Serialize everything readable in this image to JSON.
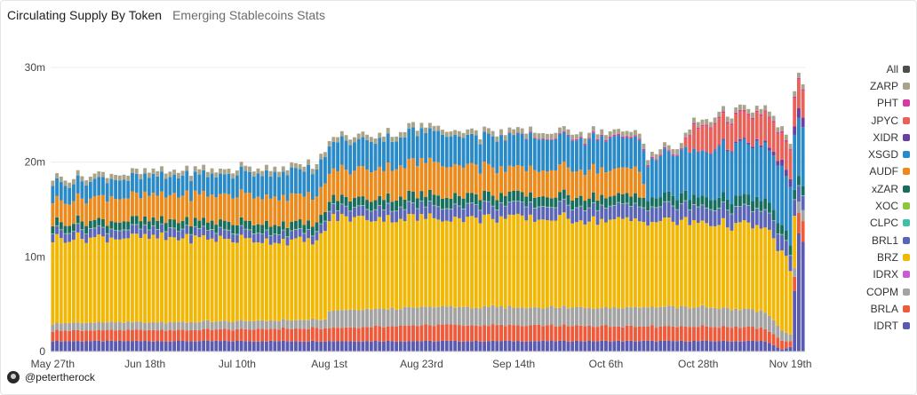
{
  "header": {
    "title": "Circulating Supply By Token",
    "subtitle": "Emerging Stablecoins Stats"
  },
  "footer": {
    "author": "@petertherock"
  },
  "chart_data": {
    "type": "bar",
    "stacked": true,
    "ylim": [
      0,
      33000000
    ],
    "y_ticks": [
      {
        "value": 0,
        "label": "0"
      },
      {
        "value": 10000000,
        "label": "10m"
      },
      {
        "value": 20000000,
        "label": "20m"
      },
      {
        "value": 30000000,
        "label": "30m"
      }
    ],
    "x_ticks": [
      {
        "index": 0,
        "label": "May 27th"
      },
      {
        "index": 22,
        "label": "Jun 18th"
      },
      {
        "index": 44,
        "label": "Jul 10th"
      },
      {
        "index": 66,
        "label": "Aug 1st"
      },
      {
        "index": 88,
        "label": "Aug 23rd"
      },
      {
        "index": 110,
        "label": "Sep 14th"
      },
      {
        "index": 132,
        "label": "Oct 6th"
      },
      {
        "index": 154,
        "label": "Oct 28th"
      },
      {
        "index": 176,
        "label": "Nov 19th"
      }
    ],
    "num_bars": 180,
    "grid": true,
    "legend_position": "right",
    "legend": [
      "All",
      "ZARP",
      "PHT",
      "JPYC",
      "XIDR",
      "XSGD",
      "AUDF",
      "xZAR",
      "XOC",
      "CLPC",
      "BRL1",
      "BRZ",
      "IDRX",
      "COPM",
      "BRLA",
      "IDRT"
    ],
    "colors": {
      "All": "#4d4d4d",
      "ZARP": "#a9a38a",
      "PHT": "#d63aa2",
      "JPYC": "#e9625a",
      "XIDR": "#6b3fa0",
      "XSGD": "#2a8ac7",
      "AUDF": "#ec8a1c",
      "xZAR": "#176e5e",
      "XOC": "#8cc63f",
      "CLPC": "#3cc0a8",
      "BRL1": "#5b65b8",
      "BRZ": "#f2b705",
      "IDRX": "#c85ad6",
      "COPM": "#a3a3a3",
      "BRLA": "#ee5a3a",
      "IDRT": "#5a5ab0"
    },
    "segments": [
      {
        "name": "IDRT",
        "anchors": [
          [
            0,
            1.1
          ],
          [
            60,
            1.1
          ],
          [
            120,
            1.1
          ],
          [
            170,
            1.1
          ],
          [
            174,
            0.2
          ],
          [
            176,
            0.5
          ],
          [
            177,
            6.5
          ],
          [
            178,
            11.8
          ],
          [
            179,
            11.8
          ]
        ]
      },
      {
        "name": "BRLA",
        "anchors": [
          [
            0,
            1.1
          ],
          [
            40,
            1.2
          ],
          [
            66,
            1.4
          ],
          [
            90,
            1.7
          ],
          [
            130,
            1.6
          ],
          [
            165,
            1.5
          ],
          [
            172,
            1.2
          ],
          [
            176,
            0.6
          ],
          [
            178,
            2.2
          ],
          [
            179,
            2.2
          ]
        ]
      },
      {
        "name": "COPM",
        "anchors": [
          [
            0,
            0.8
          ],
          [
            65,
            0.9
          ],
          [
            66,
            1.8
          ],
          [
            90,
            1.9
          ],
          [
            120,
            1.9
          ],
          [
            150,
            2.1
          ],
          [
            170,
            1.8
          ],
          [
            176,
            0.7
          ],
          [
            178,
            1.2
          ],
          [
            179,
            1.2
          ]
        ]
      },
      {
        "name": "IDRX",
        "anchors": [
          [
            0,
            0
          ],
          [
            179,
            0
          ]
        ]
      },
      {
        "name": "BRZ",
        "anchors": [
          [
            0,
            9.0
          ],
          [
            30,
            8.9
          ],
          [
            60,
            8.3
          ],
          [
            63,
            8.3
          ],
          [
            66,
            9.8
          ],
          [
            90,
            9.4
          ],
          [
            110,
            9.4
          ],
          [
            130,
            9.3
          ],
          [
            150,
            9.0
          ],
          [
            170,
            8.8
          ],
          [
            175,
            8.0
          ],
          [
            177,
            5.2
          ],
          [
            178,
            0.0
          ],
          [
            179,
            0.0
          ]
        ]
      },
      {
        "name": "BRL1",
        "anchors": [
          [
            0,
            0.9
          ],
          [
            60,
            0.9
          ],
          [
            90,
            1.3
          ],
          [
            120,
            1.4
          ],
          [
            150,
            1.6
          ],
          [
            170,
            1.8
          ],
          [
            178,
            1.6
          ],
          [
            179,
            1.6
          ]
        ]
      },
      {
        "name": "CLPC",
        "anchors": [
          [
            0,
            0.03
          ],
          [
            179,
            0.03
          ]
        ]
      },
      {
        "name": "XOC",
        "anchors": [
          [
            0,
            0.03
          ],
          [
            179,
            0.03
          ]
        ]
      },
      {
        "name": "xZAR",
        "anchors": [
          [
            0,
            0.8
          ],
          [
            60,
            0.9
          ],
          [
            90,
            1.1
          ],
          [
            120,
            1.0
          ],
          [
            150,
            1.0
          ],
          [
            170,
            1.1
          ],
          [
            178,
            1.0
          ],
          [
            179,
            1.0
          ]
        ]
      },
      {
        "name": "AUDF",
        "anchors": [
          [
            0,
            2.3
          ],
          [
            40,
            2.8
          ],
          [
            65,
            2.9
          ],
          [
            80,
            3.2
          ],
          [
            90,
            3.5
          ],
          [
            110,
            2.6
          ],
          [
            120,
            2.9
          ],
          [
            140,
            2.8
          ],
          [
            142,
            0.0
          ],
          [
            179,
            0.0
          ]
        ]
      },
      {
        "name": "XSGD",
        "anchors": [
          [
            0,
            1.8
          ],
          [
            40,
            2.1
          ],
          [
            66,
            2.9
          ],
          [
            90,
            3.2
          ],
          [
            110,
            3.3
          ],
          [
            130,
            3.3
          ],
          [
            140,
            3.3
          ],
          [
            145,
            4.3
          ],
          [
            160,
            5.3
          ],
          [
            175,
            6.0
          ],
          [
            178,
            6.0
          ],
          [
            179,
            6.0
          ]
        ]
      },
      {
        "name": "XIDR",
        "anchors": [
          [
            0,
            0
          ],
          [
            150,
            0
          ],
          [
            170,
            0.2
          ],
          [
            178,
            1.0
          ],
          [
            179,
            1.0
          ]
        ]
      },
      {
        "name": "JPYC",
        "anchors": [
          [
            0,
            0
          ],
          [
            150,
            0
          ],
          [
            153,
            2.5
          ],
          [
            160,
            2.8
          ],
          [
            170,
            3.0
          ],
          [
            178,
            3.0
          ],
          [
            179,
            3.0
          ]
        ]
      },
      {
        "name": "PHT",
        "anchors": [
          [
            0,
            0
          ],
          [
            100,
            0
          ],
          [
            130,
            0.15
          ],
          [
            179,
            0.15
          ]
        ]
      },
      {
        "name": "ZARP",
        "anchors": [
          [
            0,
            0.55
          ],
          [
            179,
            0.55
          ]
        ]
      }
    ]
  }
}
